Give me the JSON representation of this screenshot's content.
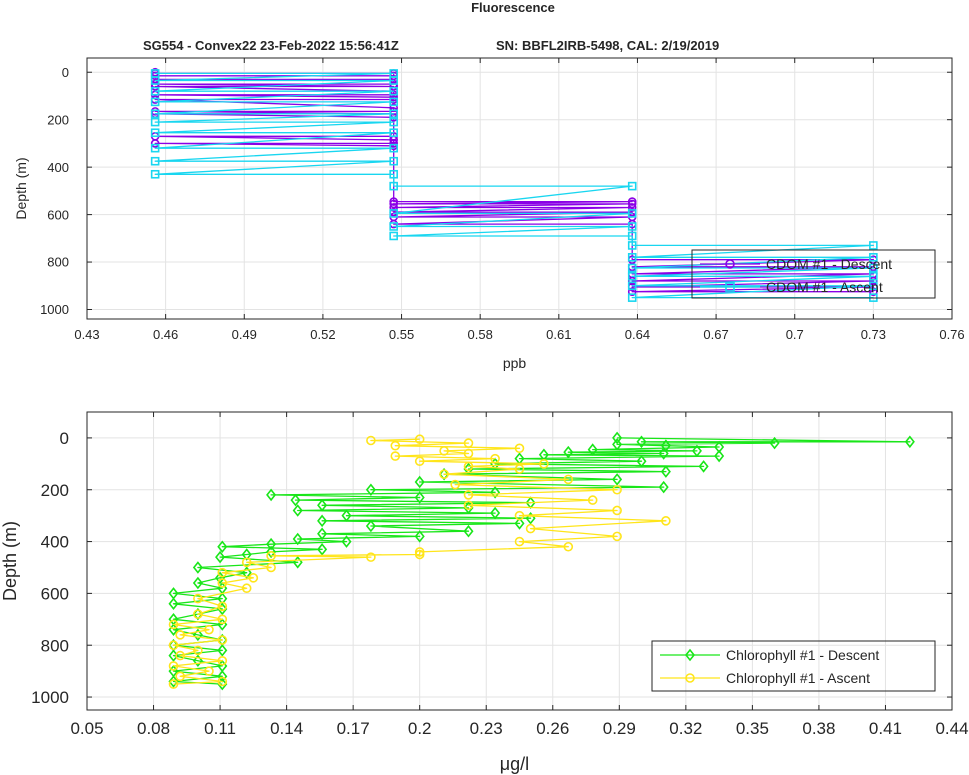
{
  "figure": {
    "title": "Fluorescence",
    "subtitle_left": "SG554 - Convex22 23-Feb-2022 15:56:41Z",
    "subtitle_right": "SN: BBFL2IRB-5498, CAL: 2/19/2019"
  },
  "chart_data": [
    {
      "type": "line",
      "xlabel": "ppb",
      "ylabel": "Depth (m)",
      "xlim": [
        0.43,
        0.76
      ],
      "ylim": [
        1040,
        -60
      ],
      "y_reversed": true,
      "xticks": [
        0.43,
        0.46,
        0.49,
        0.52,
        0.55,
        0.58,
        0.61,
        0.64,
        0.67,
        0.7,
        0.73,
        0.76
      ],
      "xtick_labels": [
        "0.43",
        "0.46",
        "0.49",
        "0.52",
        "0.55",
        "0.58",
        "0.61",
        "0.64",
        "0.67",
        "0.7",
        "0.73",
        "0.76"
      ],
      "yticks": [
        0,
        200,
        400,
        600,
        800,
        1000
      ],
      "ytick_labels": [
        "0",
        "200",
        "400",
        "600",
        "800",
        "1000"
      ],
      "grid": true,
      "legend_position": "bottom-right",
      "series": [
        {
          "name": "CDOM #1 - Descent",
          "color": "#8a00e6",
          "marker": "circle",
          "x": [
            0.456,
            0.456,
            0.547,
            0.547,
            0.456,
            0.456,
            0.547,
            0.547,
            0.456,
            0.547,
            0.456,
            0.547,
            0.547,
            0.456,
            0.547,
            0.547,
            0.456,
            0.547,
            0.547,
            0.456,
            0.547,
            0.456,
            0.547,
            0.547,
            0.456,
            0.547,
            0.547,
            0.456,
            0.547,
            0.547,
            0.638,
            0.547,
            0.638,
            0.547,
            0.638,
            0.547,
            0.638,
            0.547,
            0.638,
            0.547,
            0.638,
            0.638,
            0.73,
            0.638,
            0.73,
            0.638,
            0.73,
            0.638,
            0.73,
            0.638,
            0.73,
            0.638,
            0.73
          ],
          "y": [
            0,
            5,
            5,
            15,
            15,
            30,
            30,
            50,
            50,
            60,
            60,
            80,
            95,
            95,
            105,
            115,
            115,
            150,
            165,
            165,
            175,
            175,
            190,
            270,
            270,
            285,
            300,
            300,
            310,
            545,
            545,
            555,
            555,
            570,
            570,
            590,
            590,
            610,
            610,
            640,
            640,
            790,
            790,
            820,
            820,
            850,
            850,
            880,
            880,
            905,
            905,
            925,
            925
          ]
        },
        {
          "name": "CDOM #1 - Ascent",
          "color": "#19d6f0",
          "marker": "square",
          "x": [
            0.73,
            0.638,
            0.73,
            0.638,
            0.73,
            0.638,
            0.73,
            0.638,
            0.73,
            0.638,
            0.73,
            0.638,
            0.638,
            0.547,
            0.638,
            0.547,
            0.638,
            0.547,
            0.638,
            0.547,
            0.547,
            0.456,
            0.547,
            0.456,
            0.547,
            0.456,
            0.547,
            0.456,
            0.547,
            0.456,
            0.547,
            0.456,
            0.547,
            0.456,
            0.547,
            0.456,
            0.547,
            0.456,
            0.547,
            0.456
          ],
          "y": [
            950,
            950,
            900,
            900,
            860,
            860,
            825,
            825,
            780,
            780,
            730,
            730,
            690,
            690,
            650,
            650,
            595,
            595,
            480,
            480,
            430,
            430,
            375,
            375,
            320,
            320,
            255,
            255,
            210,
            210,
            175,
            175,
            125,
            125,
            80,
            80,
            35,
            35,
            5,
            5
          ]
        }
      ]
    },
    {
      "type": "line",
      "xlabel": "μg/l",
      "ylabel": "Depth (m)",
      "xlim": [
        0.05,
        0.44
      ],
      "ylim": [
        1050,
        -100
      ],
      "y_reversed": true,
      "xticks": [
        0.05,
        0.08,
        0.11,
        0.14,
        0.17,
        0.2,
        0.23,
        0.26,
        0.29,
        0.32,
        0.35,
        0.38,
        0.41,
        0.44
      ],
      "xtick_labels": [
        "0.05",
        "0.08",
        "0.11",
        "0.14",
        "0.17",
        "0.2",
        "0.23",
        "0.26",
        "0.29",
        "0.32",
        "0.35",
        "0.38",
        "0.41",
        "0.44"
      ],
      "yticks": [
        0,
        200,
        400,
        600,
        800,
        1000
      ],
      "ytick_labels": [
        "0",
        "200",
        "400",
        "600",
        "800",
        "1000"
      ],
      "grid": true,
      "legend_position": "bottom-right",
      "series": [
        {
          "name": "Chlorophyll #1 - Descent",
          "color": "#19e619",
          "marker": "diamond",
          "x": [
            0.289,
            0.421,
            0.3,
            0.36,
            0.289,
            0.311,
            0.335,
            0.278,
            0.325,
            0.267,
            0.31,
            0.256,
            0.335,
            0.245,
            0.3,
            0.234,
            0.328,
            0.222,
            0.311,
            0.211,
            0.289,
            0.2,
            0.31,
            0.178,
            0.234,
            0.133,
            0.2,
            0.144,
            0.25,
            0.156,
            0.222,
            0.145,
            0.234,
            0.167,
            0.25,
            0.156,
            0.245,
            0.178,
            0.222,
            0.156,
            0.2,
            0.145,
            0.167,
            0.133,
            0.111,
            0.156,
            0.133,
            0.122,
            0.11,
            0.145,
            0.1,
            0.122,
            0.11,
            0.1,
            0.111,
            0.089,
            0.111,
            0.089,
            0.111,
            0.1,
            0.089,
            0.111,
            0.089,
            0.1,
            0.111,
            0.089,
            0.111,
            0.089,
            0.1,
            0.111,
            0.089,
            0.111,
            0.089,
            0.111
          ],
          "y": [
            0,
            15,
            15,
            20,
            25,
            30,
            35,
            45,
            50,
            55,
            60,
            65,
            70,
            80,
            90,
            100,
            110,
            120,
            130,
            140,
            160,
            170,
            190,
            200,
            210,
            220,
            230,
            240,
            250,
            260,
            270,
            280,
            290,
            300,
            310,
            320,
            330,
            340,
            360,
            370,
            380,
            390,
            400,
            410,
            420,
            430,
            440,
            450,
            460,
            480,
            500,
            520,
            540,
            560,
            580,
            600,
            620,
            640,
            660,
            680,
            700,
            720,
            740,
            760,
            780,
            800,
            820,
            840,
            860,
            880,
            900,
            920,
            940,
            950
          ]
        },
        {
          "name": "Chlorophyll #1 - Ascent",
          "color": "#ffe51a",
          "marker": "circle",
          "x": [
            0.089,
            0.111,
            0.092,
            0.105,
            0.089,
            0.111,
            0.092,
            0.1,
            0.089,
            0.111,
            0.092,
            0.105,
            0.089,
            0.111,
            0.1,
            0.111,
            0.1,
            0.122,
            0.111,
            0.125,
            0.111,
            0.133,
            0.122,
            0.178,
            0.133,
            0.2,
            0.2,
            0.267,
            0.245,
            0.289,
            0.25,
            0.311,
            0.245,
            0.289,
            0.222,
            0.278,
            0.222,
            0.289,
            0.216,
            0.267,
            0.211,
            0.245,
            0.222,
            0.256,
            0.2,
            0.234,
            0.189,
            0.222,
            0.211,
            0.245,
            0.189,
            0.222,
            0.178,
            0.2
          ],
          "y": [
            950,
            940,
            920,
            900,
            880,
            860,
            840,
            820,
            800,
            780,
            760,
            740,
            720,
            700,
            680,
            650,
            620,
            580,
            560,
            540,
            520,
            500,
            480,
            460,
            455,
            450,
            440,
            420,
            400,
            380,
            350,
            320,
            300,
            280,
            260,
            240,
            220,
            200,
            180,
            160,
            140,
            120,
            110,
            100,
            90,
            80,
            70,
            60,
            50,
            40,
            30,
            20,
            10,
            5
          ]
        }
      ]
    }
  ]
}
